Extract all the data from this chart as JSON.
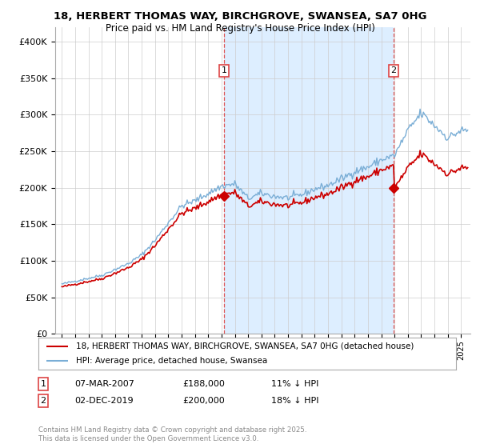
{
  "title_line1": "18, HERBERT THOMAS WAY, BIRCHGROVE, SWANSEA, SA7 0HG",
  "title_line2": "Price paid vs. HM Land Registry's House Price Index (HPI)",
  "legend_label1": "18, HERBERT THOMAS WAY, BIRCHGROVE, SWANSEA, SA7 0HG (detached house)",
  "legend_label2": "HPI: Average price, detached house, Swansea",
  "sale1_label": "1",
  "sale1_date": "07-MAR-2007",
  "sale1_price": "£188,000",
  "sale1_hpi": "11% ↓ HPI",
  "sale2_label": "2",
  "sale2_date": "02-DEC-2019",
  "sale2_price": "£200,000",
  "sale2_hpi": "18% ↓ HPI",
  "footnote": "Contains HM Land Registry data © Crown copyright and database right 2025.\nThis data is licensed under the Open Government Licence v3.0.",
  "sale1_year": 2007.18,
  "sale2_year": 2019.92,
  "sale1_price_val": 188000,
  "sale2_price_val": 200000,
  "ylim": [
    0,
    420000
  ],
  "xlim_start": 1994.5,
  "xlim_end": 2025.7,
  "yticks": [
    0,
    50000,
    100000,
    150000,
    200000,
    250000,
    300000,
    350000,
    400000
  ],
  "property_color": "#cc0000",
  "hpi_color": "#7aaed6",
  "shade_color": "#ddeeff",
  "vline_color": "#dd4444",
  "background_color": "#ffffff",
  "grid_color": "#cccccc"
}
